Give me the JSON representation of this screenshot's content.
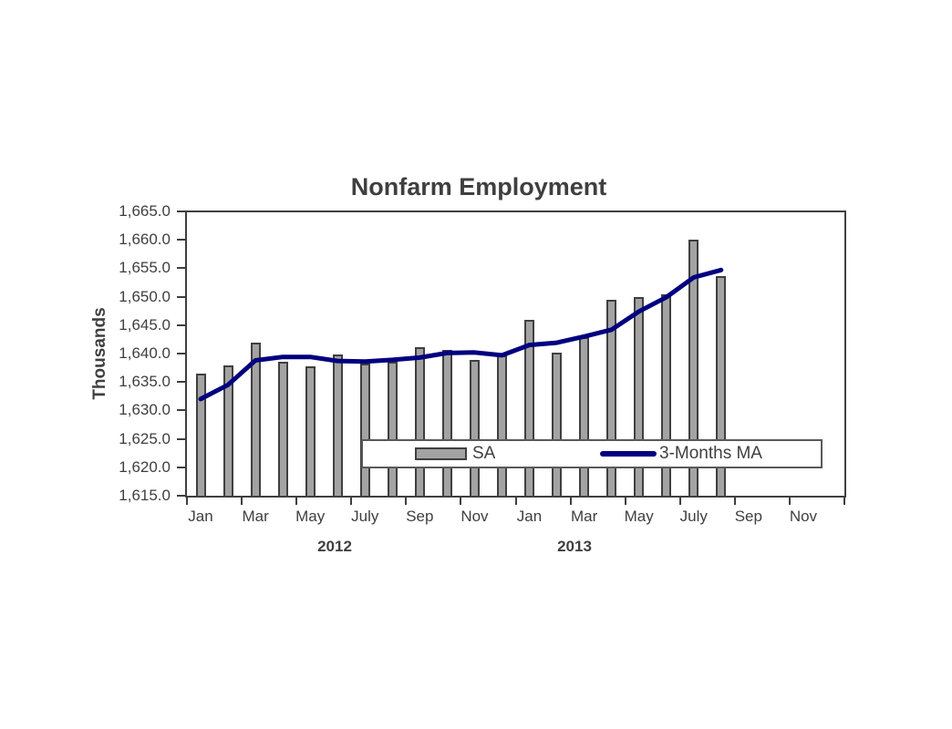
{
  "chart": {
    "title": "Nonfarm Employment",
    "y_axis_title": "Thousands",
    "year_labels": [
      "2012",
      "2013"
    ],
    "legend": {
      "sa_label": "SA",
      "ma_label": "3-Months MA"
    },
    "colors": {
      "text": "#3F3F3F",
      "axis": "#3F3F3F",
      "bar_fill": "#A3A3A3",
      "bar_border": "#3F3F3F",
      "ma_line": "#000080",
      "legend_border": "#595959",
      "background": "#FFFFFF"
    }
  },
  "chart_data": {
    "type": "bar",
    "title": "Nonfarm Employment",
    "xlabel": "",
    "ylabel": "Thousands",
    "ylim": [
      1615,
      1665
    ],
    "y_tick_interval": 5,
    "y_tick_labels": [
      "1,665.0",
      "1,660.0",
      "1,655.0",
      "1,650.0",
      "1,645.0",
      "1,640.0",
      "1,635.0",
      "1,630.0",
      "1,625.0",
      "1,620.0",
      "1,615.0"
    ],
    "x_tick_labels": [
      "Jan",
      "Mar",
      "May",
      "July",
      "Sep",
      "Nov",
      "Jan",
      "Mar",
      "May",
      "July",
      "Sep",
      "Nov"
    ],
    "x_axis_span_months": 24,
    "grid": false,
    "legend_position": "inside bottom center",
    "categories": [
      "Jan 2012",
      "Feb 2012",
      "Mar 2012",
      "Apr 2012",
      "May 2012",
      "Jun 2012",
      "Jul 2012",
      "Aug 2012",
      "Sep 2012",
      "Oct 2012",
      "Nov 2012",
      "Dec 2012",
      "Jan 2013",
      "Feb 2013",
      "Mar 2013",
      "Apr 2013",
      "May 2013",
      "Jun 2013",
      "Jul 2013",
      "Aug 2013"
    ],
    "series": [
      {
        "name": "SA",
        "type": "bar",
        "values": [
          1636.5,
          1637.9,
          1641.9,
          1638.5,
          1637.7,
          1639.9,
          1638.3,
          1638.5,
          1641.2,
          1640.7,
          1638.8,
          1639.6,
          1646.0,
          1640.2,
          1642.9,
          1649.4,
          1649.9,
          1650.4,
          1660.0,
          1653.6
        ]
      },
      {
        "name": "3-Months MA",
        "type": "line",
        "values": [
          1632.0,
          1634.5,
          1638.8,
          1639.4,
          1639.4,
          1638.7,
          1638.6,
          1638.9,
          1639.3,
          1640.1,
          1640.2,
          1639.7,
          1641.5,
          1641.9,
          1643.0,
          1644.2,
          1647.4,
          1649.9,
          1653.4,
          1654.7
        ]
      }
    ]
  }
}
